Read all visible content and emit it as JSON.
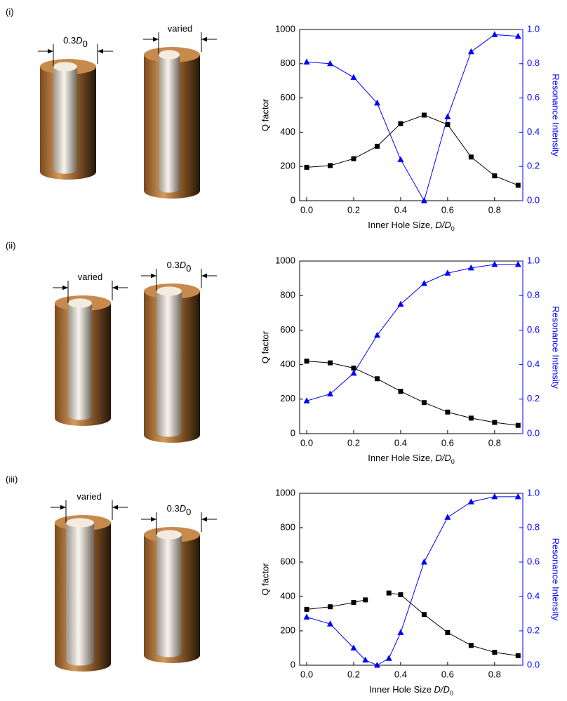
{
  "panels": [
    {
      "label": "(i)",
      "cylinders": [
        {
          "coef": "0.3",
          "var": "D",
          "sub": "0"
        },
        {
          "text": "varied"
        }
      ]
    },
    {
      "label": "(ii)",
      "cylinders": [
        {
          "text": "varied"
        },
        {
          "coef": "0.3",
          "var": "D",
          "sub": "0"
        }
      ]
    },
    {
      "label": "(iii)",
      "cylinders": [
        {
          "text": "varied"
        },
        {
          "coef": "0.3",
          "var": "D",
          "sub": "0"
        }
      ]
    }
  ],
  "chart_data": [
    {
      "type": "line",
      "ylabel": "Q factor",
      "y2label": "Resonance Intensity",
      "xlabel": {
        "text": "Inner Hole Size, ",
        "italic": "D/D",
        "sub": "0"
      },
      "x": [
        0,
        0.1,
        0.2,
        0.3,
        0.4,
        0.5,
        0.6,
        0.7,
        0.8,
        0.9
      ],
      "xlim": [
        -0.03,
        0.92
      ],
      "xticks": [
        {
          "value": 0,
          "label": "0.0"
        },
        0.2,
        0.4,
        0.6,
        0.8
      ],
      "ylim": [
        0,
        1000
      ],
      "yticks": [
        0,
        200,
        400,
        600,
        800,
        1000
      ],
      "y2lim": [
        0,
        1
      ],
      "y2ticks": [
        {
          "value": 0,
          "label": "0.0"
        },
        0.2,
        0.4,
        0.6,
        0.8,
        {
          "value": 1,
          "label": "1.0"
        }
      ],
      "series": [
        {
          "color": "#000000",
          "marker": "square",
          "values": [
            195,
            205,
            245,
            318,
            450,
            500,
            445,
            255,
            145,
            90
          ]
        },
        {
          "color": "#0000ff",
          "marker": "triangle",
          "axis": "y2",
          "values": [
            0.81,
            0.8,
            0.72,
            0.57,
            0.24,
            0.0,
            0.49,
            0.87,
            0.97,
            0.96
          ]
        }
      ]
    },
    {
      "type": "line",
      "ylabel": "Q factor",
      "y2label": "Resonance Intensity",
      "xlabel": {
        "text": "Inner Hole Size, ",
        "italic": "D/D",
        "sub": "0"
      },
      "x": [
        0,
        0.1,
        0.2,
        0.3,
        0.4,
        0.5,
        0.6,
        0.7,
        0.8,
        0.9
      ],
      "xlim": [
        -0.03,
        0.92
      ],
      "xticks": [
        {
          "value": 0,
          "label": "0.0"
        },
        0.2,
        0.4,
        0.6,
        0.8
      ],
      "ylim": [
        0,
        1000
      ],
      "yticks": [
        0,
        200,
        400,
        600,
        800,
        1000
      ],
      "y2lim": [
        0,
        1
      ],
      "y2ticks": [
        {
          "value": 0,
          "label": "0.0"
        },
        0.2,
        0.4,
        0.6,
        0.8,
        {
          "value": 1,
          "label": "1.0"
        }
      ],
      "series": [
        {
          "color": "#000000",
          "marker": "square",
          "values": [
            420,
            410,
            380,
            318,
            245,
            180,
            125,
            90,
            65,
            48
          ]
        },
        {
          "color": "#0000ff",
          "marker": "triangle",
          "axis": "y2",
          "values": [
            0.19,
            0.23,
            0.35,
            0.57,
            0.75,
            0.87,
            0.93,
            0.96,
            0.98,
            0.98
          ]
        }
      ]
    },
    {
      "type": "line",
      "ylabel": "Q factor",
      "y2label": "Resonance Intensity",
      "xlabel": {
        "text": "Inner Hole Size ",
        "italic": "D/D",
        "sub": "0"
      },
      "x": [
        0,
        0.1,
        0.2,
        0.25,
        0.3,
        0.35,
        0.4,
        0.5,
        0.6,
        0.7,
        0.8,
        0.9
      ],
      "xlim": [
        -0.03,
        0.92
      ],
      "xticks": [
        {
          "value": 0,
          "label": "0.0"
        },
        0.2,
        0.4,
        0.6,
        0.8
      ],
      "ylim": [
        0,
        1000
      ],
      "yticks": [
        0,
        200,
        400,
        600,
        800,
        1000
      ],
      "y2lim": [
        0,
        1
      ],
      "y2ticks": [
        {
          "value": 0,
          "label": "0.0"
        },
        0.2,
        0.4,
        0.6,
        0.8,
        {
          "value": 1,
          "label": "1.0"
        }
      ],
      "series": [
        {
          "color": "#000000",
          "marker": "square",
          "values": [
            325,
            340,
            365,
            380,
            null,
            420,
            410,
            295,
            190,
            115,
            75,
            55
          ]
        },
        {
          "color": "#0000ff",
          "marker": "triangle",
          "axis": "y2",
          "values": [
            0.28,
            0.24,
            0.1,
            0.03,
            0.0,
            0.04,
            0.19,
            0.6,
            0.86,
            0.95,
            0.98,
            0.98
          ]
        }
      ]
    }
  ]
}
